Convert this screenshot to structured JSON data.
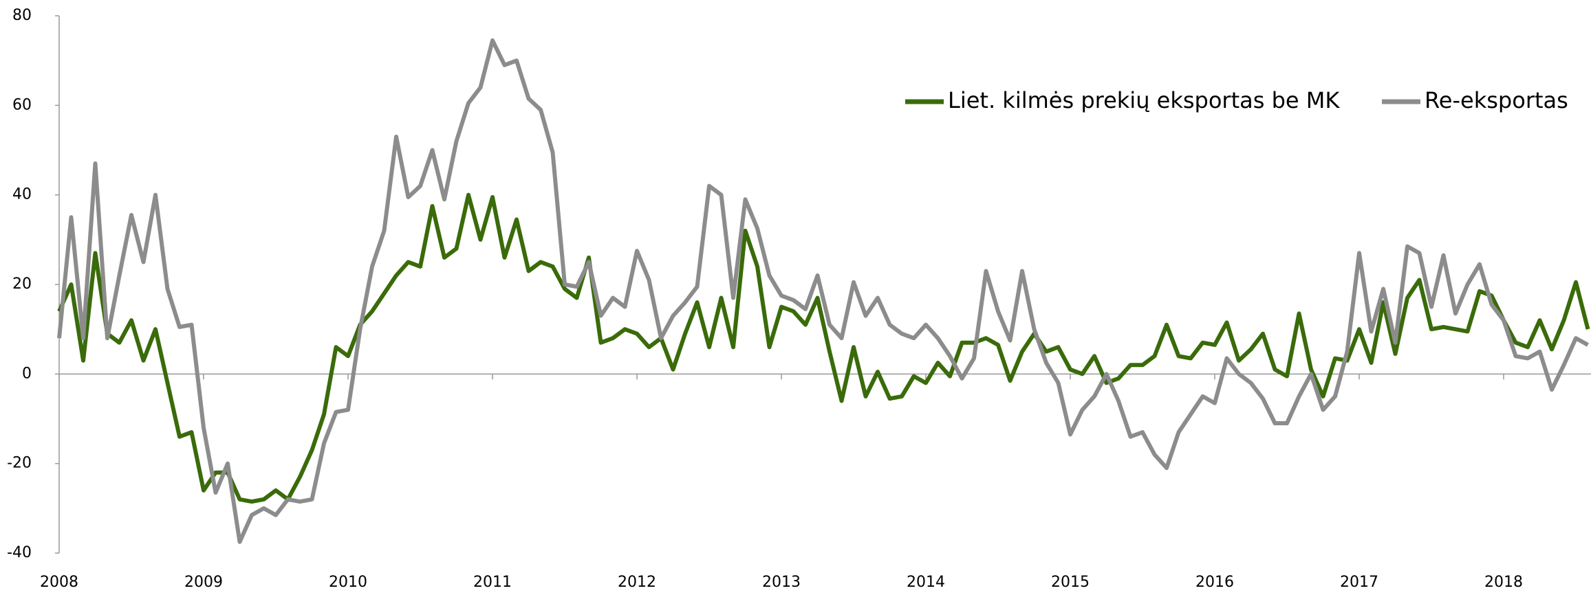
{
  "chart_data": {
    "type": "line",
    "categories": [
      "2008",
      null,
      null,
      null,
      null,
      null,
      null,
      null,
      null,
      null,
      null,
      null,
      "2009",
      null,
      null,
      null,
      null,
      null,
      null,
      null,
      null,
      null,
      null,
      null,
      "2010",
      null,
      null,
      null,
      null,
      null,
      null,
      null,
      null,
      null,
      null,
      null,
      "2011",
      null,
      null,
      null,
      null,
      null,
      null,
      null,
      null,
      null,
      null,
      null,
      "2012",
      null,
      null,
      null,
      null,
      null,
      null,
      null,
      null,
      null,
      null,
      null,
      "2013",
      null,
      null,
      null,
      null,
      null,
      null,
      null,
      null,
      null,
      null,
      null,
      "2014",
      null,
      null,
      null,
      null,
      null,
      null,
      null,
      null,
      null,
      null,
      null,
      "2015",
      null,
      null,
      null,
      null,
      null,
      null,
      null,
      null,
      null,
      null,
      null,
      "2016",
      null,
      null,
      null,
      null,
      null,
      null,
      null,
      null,
      null,
      null,
      null,
      "2017",
      null,
      null,
      null,
      null,
      null,
      null,
      null,
      null,
      null,
      null,
      null,
      "2018",
      null,
      null,
      null,
      null,
      null,
      null,
      null
    ],
    "series": [
      {
        "name": "Liet. kilmės prekių eksportas be MK",
        "color": "#3a6b0a",
        "values": [
          14,
          20,
          3,
          27,
          9,
          7,
          12,
          3,
          10,
          -2,
          -14,
          -13,
          -26,
          -22,
          -22,
          -28,
          -28.5,
          -28,
          -26,
          -28,
          -23,
          -17,
          -9,
          6,
          4,
          11,
          14,
          18,
          22,
          25,
          24,
          37.5,
          26,
          28,
          40,
          30,
          39.5,
          26,
          34.5,
          23,
          25,
          24,
          19,
          17,
          26,
          7,
          8,
          10,
          9,
          6,
          8,
          1,
          9,
          16,
          6,
          17,
          6,
          32,
          24,
          6,
          15,
          14,
          11,
          17,
          5,
          -6,
          6,
          -5,
          0.5,
          -5.5,
          -5,
          -0.5,
          -2,
          2.5,
          -0.5,
          7,
          7,
          8,
          6.5,
          -1.5,
          5,
          9,
          5,
          6,
          1,
          0,
          4,
          -2,
          -1,
          2,
          2,
          4,
          11,
          4,
          3.5,
          7,
          6.5,
          11.5,
          3,
          5.5,
          9,
          1,
          -0.5,
          13.5,
          1,
          -5,
          3.5,
          3,
          10,
          2.5,
          16,
          4.5,
          17,
          21,
          10,
          10.5,
          10,
          9.5,
          18.5,
          17.5,
          12,
          7,
          6,
          12,
          5.5,
          12,
          20.5,
          10
        ]
      },
      {
        "name": "Re-eksportas",
        "color": "#8c8c8c",
        "values": [
          8,
          35,
          8,
          47,
          8,
          22,
          35.5,
          25,
          40,
          19,
          10.5,
          11,
          -12,
          -26.5,
          -20,
          -37.5,
          -31.5,
          -30,
          -31.5,
          -28,
          -28.5,
          -28,
          -15.5,
          -8.5,
          -8,
          10,
          24,
          32,
          53,
          39.5,
          42,
          50,
          39,
          52,
          60.5,
          64,
          74.5,
          69,
          70,
          61.5,
          59,
          49.5,
          20,
          19.5,
          25,
          13,
          17,
          15,
          27.5,
          21,
          8,
          13,
          16,
          19.5,
          42,
          40,
          17,
          39,
          32.5,
          22,
          17.5,
          16.5,
          14.5,
          22,
          11,
          8,
          20.5,
          13,
          17,
          11,
          9,
          8,
          11,
          8,
          4,
          -1,
          3.5,
          23,
          14,
          7.5,
          23,
          10,
          2.5,
          -2,
          -13.5,
          -8,
          -5,
          0,
          -6,
          -14,
          -13,
          -18,
          -21,
          -13,
          -9,
          -5,
          -6.5,
          3.5,
          0,
          -2,
          -5.5,
          -11,
          -11,
          -5,
          0,
          -8,
          -5,
          5,
          27,
          9.5,
          19,
          7,
          28.5,
          27,
          15,
          26.5,
          13.5,
          20,
          24.5,
          15.5,
          12,
          4,
          3.5,
          5,
          -3.5,
          2,
          8,
          6.5
        ]
      }
    ],
    "ylim": [
      -40,
      80
    ],
    "yticks": [
      -40,
      -20,
      0,
      20,
      40,
      60,
      80
    ],
    "legend": "top-right"
  }
}
